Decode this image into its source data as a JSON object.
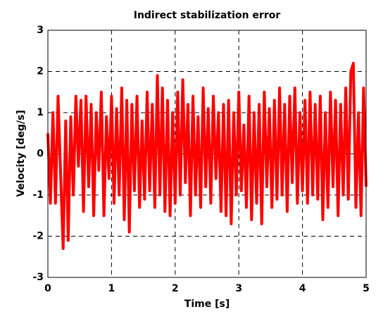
{
  "chart_data": {
    "type": "line",
    "title": "Indirect stabilization error",
    "xlabel": "Time [s]",
    "ylabel": "Velocity [deg/s]",
    "xlim": [
      0,
      5
    ],
    "ylim": [
      -3,
      3
    ],
    "xticks": [
      0,
      1,
      2,
      3,
      4,
      5
    ],
    "yticks": [
      -3,
      -2,
      -1,
      0,
      1,
      2,
      3
    ],
    "grid": true,
    "color": "#ff0000",
    "x": [
      0,
      0.04,
      0.08,
      0.12,
      0.16,
      0.2,
      0.24,
      0.28,
      0.32,
      0.36,
      0.4,
      0.44,
      0.48,
      0.52,
      0.56,
      0.6,
      0.64,
      0.68,
      0.72,
      0.76,
      0.8,
      0.84,
      0.88,
      0.92,
      0.96,
      1,
      1.04,
      1.08,
      1.12,
      1.16,
      1.2,
      1.24,
      1.28,
      1.32,
      1.36,
      1.4,
      1.44,
      1.48,
      1.52,
      1.56,
      1.6,
      1.64,
      1.68,
      1.72,
      1.76,
      1.8,
      1.84,
      1.88,
      1.92,
      1.96,
      2,
      2.04,
      2.08,
      2.12,
      2.16,
      2.2,
      2.24,
      2.28,
      2.32,
      2.36,
      2.4,
      2.44,
      2.48,
      2.52,
      2.56,
      2.6,
      2.64,
      2.68,
      2.72,
      2.76,
      2.8,
      2.84,
      2.88,
      2.92,
      2.96,
      3,
      3.04,
      3.08,
      3.12,
      3.16,
      3.2,
      3.24,
      3.28,
      3.32,
      3.36,
      3.4,
      3.44,
      3.48,
      3.52,
      3.56,
      3.6,
      3.64,
      3.68,
      3.72,
      3.76,
      3.8,
      3.84,
      3.88,
      3.92,
      3.96,
      4,
      4.04,
      4.08,
      4.12,
      4.16,
      4.2,
      4.24,
      4.28,
      4.32,
      4.36,
      4.4,
      4.44,
      4.48,
      4.52,
      4.56,
      4.6,
      4.64,
      4.68,
      4.72,
      4.76,
      4.8,
      4.84,
      4.88,
      4.92,
      4.96,
      5
    ],
    "values": [
      0.5,
      -1.2,
      1.0,
      -1.2,
      1.4,
      -0.5,
      -2.3,
      0.8,
      -2.1,
      0.9,
      -1.0,
      1.4,
      -0.3,
      1.3,
      -1.4,
      1.4,
      -0.8,
      1.2,
      -1.5,
      1.0,
      -0.4,
      1.5,
      -1.5,
      0.9,
      -0.6,
      1.4,
      -1.2,
      1.1,
      -1.0,
      1.6,
      -1.6,
      1.3,
      -1.9,
      1.2,
      -0.9,
      1.4,
      -1.3,
      0.8,
      -1.1,
      1.5,
      -0.9,
      1.2,
      -1.3,
      1.9,
      -1.0,
      1.6,
      -1.4,
      1.3,
      -1.5,
      1.0,
      -1.2,
      1.5,
      -1.0,
      1.8,
      -0.7,
      1.2,
      -1.5,
      1.4,
      -1.0,
      0.9,
      -1.3,
      1.6,
      -0.8,
      1.1,
      -1.2,
      1.4,
      -0.6,
      1.0,
      -1.4,
      1.2,
      -1.5,
      1.3,
      -1.7,
      1.0,
      -1.0,
      1.5,
      -0.9,
      0.7,
      -1.3,
      1.4,
      -1.6,
      1.0,
      -1.2,
      1.2,
      -1.7,
      1.5,
      -0.8,
      1.1,
      -1.3,
      1.3,
      -1.1,
      1.6,
      -1.0,
      1.2,
      -1.4,
      1.4,
      -0.7,
      1.6,
      -1.2,
      1.0,
      -0.9,
      1.3,
      -1.2,
      1.5,
      -1.0,
      1.2,
      -1.1,
      1.4,
      -1.6,
      1.0,
      -1.3,
      1.5,
      -0.8,
      1.3,
      -1.5,
      1.2,
      -1.0,
      1.6,
      -1.1,
      2.0,
      2.2,
      -1.3,
      1.0,
      -1.5,
      1.6,
      -0.8
    ]
  }
}
